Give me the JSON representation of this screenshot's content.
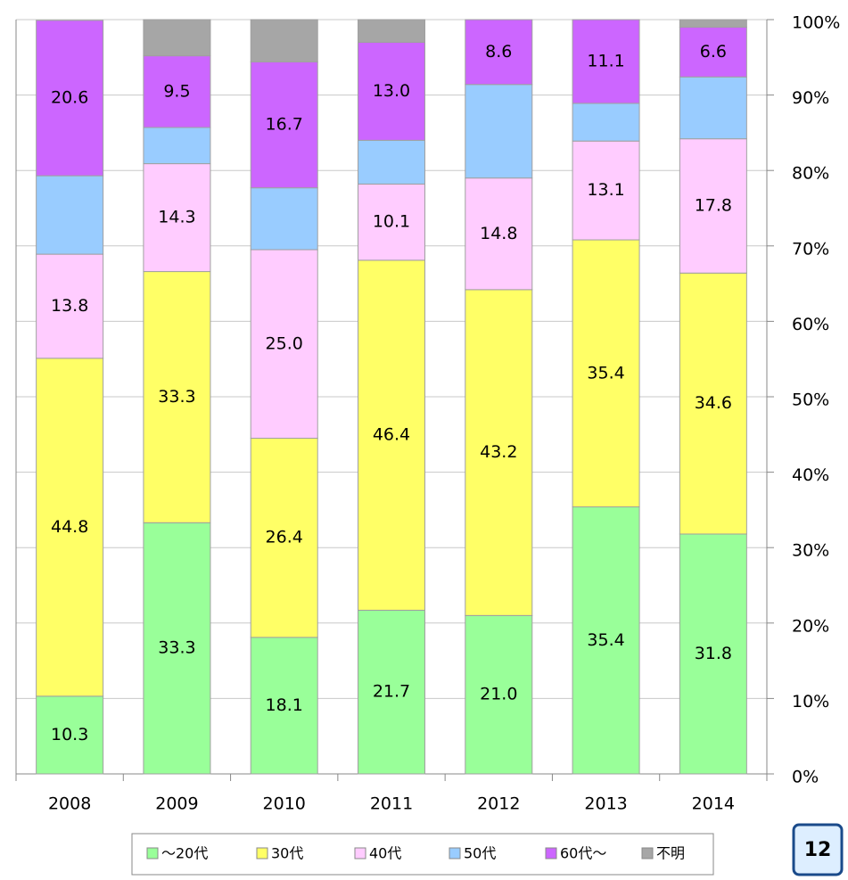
{
  "chart_data": {
    "type": "stacked_bar",
    "categories": [
      "2008",
      "2009",
      "2010",
      "2011",
      "2012",
      "2013",
      "2014"
    ],
    "series": [
      {
        "name": "～20代",
        "color": "#99ff99",
        "values": [
          10.3,
          33.3,
          18.1,
          21.7,
          21.0,
          35.4,
          31.8
        ],
        "value_labels": [
          "10.3",
          "33.3",
          "18.1",
          "21.7",
          "21.0",
          "35.4",
          "31.8"
        ]
      },
      {
        "name": "30代",
        "color": "#ffff66",
        "values": [
          44.8,
          33.3,
          26.4,
          46.4,
          43.2,
          35.4,
          34.6
        ],
        "value_labels": [
          "44.8",
          "33.3",
          "26.4",
          "46.4",
          "43.2",
          "35.4",
          "34.6"
        ]
      },
      {
        "name": "40代",
        "color": "#ffccff",
        "values": [
          13.8,
          14.3,
          25.0,
          10.1,
          14.8,
          13.1,
          17.8
        ],
        "value_labels": [
          "13.8",
          "14.3",
          "25.0",
          "10.1",
          "14.8",
          "13.1",
          "17.8"
        ]
      },
      {
        "name": "50代",
        "color": "#99ccff",
        "values": [
          10.4,
          4.8,
          8.2,
          5.8,
          12.4,
          5.0,
          8.2
        ]
      },
      {
        "name": "60代～",
        "color": "#cc66ff",
        "values": [
          20.6,
          9.5,
          16.7,
          13.0,
          8.6,
          11.1,
          6.6
        ],
        "value_labels": [
          "20.6",
          "9.5",
          "16.7",
          "13.0",
          "8.6",
          "11.1",
          "6.6"
        ]
      },
      {
        "name": "不明",
        "color": "#a6a6a6",
        "values": [
          0,
          4.8,
          5.6,
          3.0,
          0,
          0,
          1.0
        ]
      }
    ],
    "ylim": [
      0,
      100
    ],
    "yticks": [
      {
        "value": 0,
        "label": "0%"
      },
      {
        "value": 10,
        "label": "10%"
      },
      {
        "value": 20,
        "label": "20%"
      },
      {
        "value": 30,
        "label": "30%"
      },
      {
        "value": 40,
        "label": "40%"
      },
      {
        "value": 50,
        "label": "50%"
      },
      {
        "value": 60,
        "label": "60%"
      },
      {
        "value": 70,
        "label": "70%"
      },
      {
        "value": 80,
        "label": "80%"
      },
      {
        "value": 90,
        "label": "90%"
      },
      {
        "value": 100,
        "label": "100%"
      }
    ],
    "grid": true,
    "legend": "bottom"
  },
  "page_number": "12"
}
